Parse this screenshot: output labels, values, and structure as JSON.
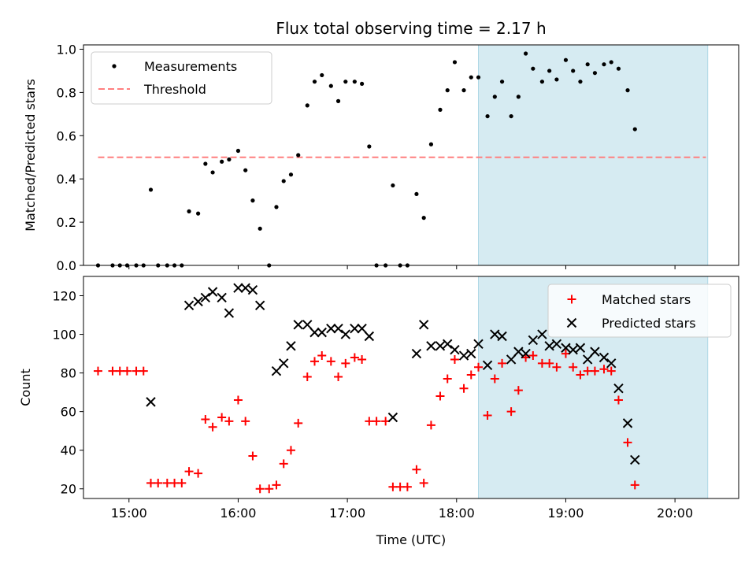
{
  "figure_title": "Flux total observing time = 2.17 h",
  "xlabel": "Time (UTC)",
  "x_ticks": [
    "15:00",
    "16:00",
    "17:00",
    "18:00",
    "19:00",
    "20:00"
  ],
  "colors": {
    "measurement": "#000000",
    "threshold": "#ff7f7f",
    "matched": "#ff0000",
    "predicted": "#000000",
    "shade": "#add8e6"
  },
  "chart_data": [
    {
      "type": "scatter",
      "ylabel": "Matched/Predicted stars",
      "xlim": [
        "14:35",
        "20:35"
      ],
      "ylim": [
        0,
        1.02
      ],
      "y_ticks": [
        "0.0",
        "0.2",
        "0.4",
        "0.6",
        "0.8",
        "1.0"
      ],
      "legend_position": "top-left",
      "shaded_span": [
        "18:12",
        "20:18"
      ],
      "threshold": {
        "name": "Threshold",
        "value": 0.5,
        "x_range": [
          "14:43",
          "20:17"
        ]
      },
      "series": [
        {
          "name": "Measurements",
          "points": [
            [
              "14:43",
              0.0
            ],
            [
              "14:51",
              0.0
            ],
            [
              "14:55",
              0.0
            ],
            [
              "14:59",
              0.0
            ],
            [
              "15:04",
              0.0
            ],
            [
              "15:08",
              0.0
            ],
            [
              "15:12",
              0.35
            ],
            [
              "15:16",
              0.0
            ],
            [
              "15:21",
              0.0
            ],
            [
              "15:25",
              0.0
            ],
            [
              "15:29",
              0.0
            ],
            [
              "15:33",
              0.25
            ],
            [
              "15:38",
              0.24
            ],
            [
              "15:42",
              0.47
            ],
            [
              "15:46",
              0.43
            ],
            [
              "15:51",
              0.48
            ],
            [
              "15:55",
              0.49
            ],
            [
              "16:00",
              0.53
            ],
            [
              "16:04",
              0.44
            ],
            [
              "16:08",
              0.3
            ],
            [
              "16:12",
              0.17
            ],
            [
              "16:17",
              0.0
            ],
            [
              "16:21",
              0.27
            ],
            [
              "16:25",
              0.39
            ],
            [
              "16:29",
              0.42
            ],
            [
              "16:33",
              0.51
            ],
            [
              "16:38",
              0.74
            ],
            [
              "16:42",
              0.85
            ],
            [
              "16:46",
              0.88
            ],
            [
              "16:51",
              0.83
            ],
            [
              "16:55",
              0.76
            ],
            [
              "16:59",
              0.85
            ],
            [
              "17:04",
              0.85
            ],
            [
              "17:08",
              0.84
            ],
            [
              "17:12",
              0.55
            ],
            [
              "17:16",
              0.0
            ],
            [
              "17:21",
              0.0
            ],
            [
              "17:25",
              0.37
            ],
            [
              "17:29",
              0.0
            ],
            [
              "17:33",
              0.0
            ],
            [
              "17:38",
              0.33
            ],
            [
              "17:42",
              0.22
            ],
            [
              "17:46",
              0.56
            ],
            [
              "17:51",
              0.72
            ],
            [
              "17:55",
              0.81
            ],
            [
              "17:59",
              0.94
            ],
            [
              "18:04",
              0.81
            ],
            [
              "18:08",
              0.87
            ],
            [
              "18:12",
              0.87
            ],
            [
              "18:17",
              0.69
            ],
            [
              "18:21",
              0.78
            ],
            [
              "18:25",
              0.85
            ],
            [
              "18:30",
              0.69
            ],
            [
              "18:34",
              0.78
            ],
            [
              "18:38",
              0.98
            ],
            [
              "18:42",
              0.91
            ],
            [
              "18:47",
              0.85
            ],
            [
              "18:51",
              0.9
            ],
            [
              "18:55",
              0.86
            ],
            [
              "19:00",
              0.95
            ],
            [
              "19:04",
              0.9
            ],
            [
              "19:08",
              0.85
            ],
            [
              "19:12",
              0.93
            ],
            [
              "19:16",
              0.89
            ],
            [
              "19:21",
              0.93
            ],
            [
              "19:25",
              0.94
            ],
            [
              "19:29",
              0.91
            ],
            [
              "19:34",
              0.81
            ],
            [
              "19:38",
              0.63
            ]
          ]
        }
      ]
    },
    {
      "type": "scatter",
      "ylabel": "Count",
      "xlim": [
        "14:35",
        "20:35"
      ],
      "ylim": [
        15,
        130
      ],
      "y_ticks": [
        "20",
        "40",
        "60",
        "80",
        "100",
        "120"
      ],
      "legend_position": "top-right",
      "shaded_span": [
        "18:12",
        "20:18"
      ],
      "series": [
        {
          "name": "Matched stars",
          "marker": "plus",
          "points": [
            [
              "14:43",
              81
            ],
            [
              "14:51",
              81
            ],
            [
              "14:55",
              81
            ],
            [
              "14:59",
              81
            ],
            [
              "15:04",
              81
            ],
            [
              "15:08",
              81
            ],
            [
              "15:12",
              23
            ],
            [
              "15:16",
              23
            ],
            [
              "15:21",
              23
            ],
            [
              "15:25",
              23
            ],
            [
              "15:29",
              23
            ],
            [
              "15:33",
              29
            ],
            [
              "15:38",
              28
            ],
            [
              "15:42",
              56
            ],
            [
              "15:46",
              52
            ],
            [
              "15:51",
              57
            ],
            [
              "15:55",
              55
            ],
            [
              "16:00",
              66
            ],
            [
              "16:04",
              55
            ],
            [
              "16:08",
              37
            ],
            [
              "16:12",
              20
            ],
            [
              "16:17",
              20
            ],
            [
              "16:21",
              22
            ],
            [
              "16:25",
              33
            ],
            [
              "16:29",
              40
            ],
            [
              "16:33",
              54
            ],
            [
              "16:38",
              78
            ],
            [
              "16:42",
              86
            ],
            [
              "16:46",
              89
            ],
            [
              "16:51",
              86
            ],
            [
              "16:55",
              78
            ],
            [
              "16:59",
              85
            ],
            [
              "17:04",
              88
            ],
            [
              "17:08",
              87
            ],
            [
              "17:12",
              55
            ],
            [
              "17:16",
              55
            ],
            [
              "17:21",
              55
            ],
            [
              "17:25",
              21
            ],
            [
              "17:29",
              21
            ],
            [
              "17:33",
              21
            ],
            [
              "17:38",
              30
            ],
            [
              "17:42",
              23
            ],
            [
              "17:46",
              53
            ],
            [
              "17:51",
              68
            ],
            [
              "17:55",
              77
            ],
            [
              "17:59",
              87
            ],
            [
              "18:04",
              72
            ],
            [
              "18:08",
              79
            ],
            [
              "18:12",
              83
            ],
            [
              "18:17",
              58
            ],
            [
              "18:21",
              77
            ],
            [
              "18:25",
              85
            ],
            [
              "18:30",
              60
            ],
            [
              "18:34",
              71
            ],
            [
              "18:38",
              88
            ],
            [
              "18:42",
              89
            ],
            [
              "18:47",
              85
            ],
            [
              "18:51",
              85
            ],
            [
              "18:55",
              83
            ],
            [
              "19:00",
              90
            ],
            [
              "19:04",
              83
            ],
            [
              "19:08",
              79
            ],
            [
              "19:12",
              81
            ],
            [
              "19:16",
              81
            ],
            [
              "19:21",
              82
            ],
            [
              "19:25",
              81
            ],
            [
              "19:29",
              66
            ],
            [
              "19:34",
              44
            ],
            [
              "19:38",
              22
            ]
          ]
        },
        {
          "name": "Predicted stars",
          "marker": "x",
          "points": [
            [
              "15:12",
              65
            ],
            [
              "15:33",
              115
            ],
            [
              "15:38",
              117
            ],
            [
              "15:42",
              119
            ],
            [
              "15:46",
              122
            ],
            [
              "15:51",
              119
            ],
            [
              "15:55",
              111
            ],
            [
              "16:00",
              124
            ],
            [
              "16:04",
              124
            ],
            [
              "16:08",
              123
            ],
            [
              "16:12",
              115
            ],
            [
              "16:21",
              81
            ],
            [
              "16:25",
              85
            ],
            [
              "16:29",
              94
            ],
            [
              "16:33",
              105
            ],
            [
              "16:38",
              105
            ],
            [
              "16:42",
              101
            ],
            [
              "16:46",
              101
            ],
            [
              "16:51",
              103
            ],
            [
              "16:55",
              103
            ],
            [
              "16:59",
              100
            ],
            [
              "17:04",
              103
            ],
            [
              "17:08",
              103
            ],
            [
              "17:12",
              99
            ],
            [
              "17:25",
              57
            ],
            [
              "17:38",
              90
            ],
            [
              "17:42",
              105
            ],
            [
              "17:46",
              94
            ],
            [
              "17:51",
              94
            ],
            [
              "17:55",
              95
            ],
            [
              "17:59",
              92
            ],
            [
              "18:04",
              89
            ],
            [
              "18:08",
              90
            ],
            [
              "18:12",
              95
            ],
            [
              "18:17",
              84
            ],
            [
              "18:21",
              100
            ],
            [
              "18:25",
              99
            ],
            [
              "18:30",
              87
            ],
            [
              "18:34",
              91
            ],
            [
              "18:38",
              90
            ],
            [
              "18:42",
              97
            ],
            [
              "18:47",
              100
            ],
            [
              "18:51",
              94
            ],
            [
              "18:55",
              95
            ],
            [
              "19:00",
              93
            ],
            [
              "19:04",
              92
            ],
            [
              "19:08",
              93
            ],
            [
              "19:12",
              87
            ],
            [
              "19:16",
              91
            ],
            [
              "19:21",
              88
            ],
            [
              "19:25",
              85
            ],
            [
              "19:29",
              72
            ],
            [
              "19:34",
              54
            ],
            [
              "19:38",
              35
            ]
          ]
        }
      ]
    }
  ]
}
